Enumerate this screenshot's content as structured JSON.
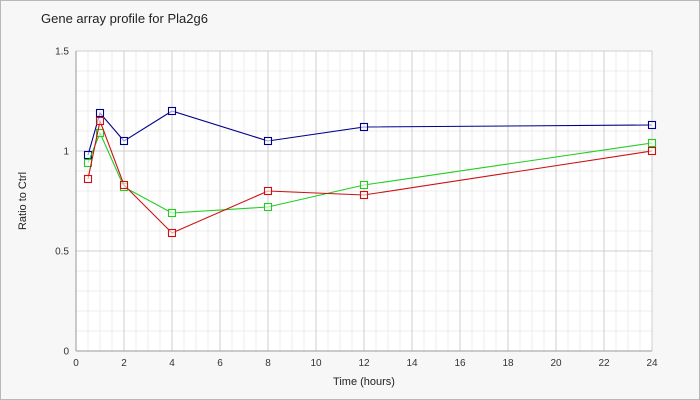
{
  "chart_data": {
    "type": "line",
    "title": "Gene array profile for Pla2g6",
    "xlabel": "Time (hours)",
    "ylabel": "Ratio to Ctrl",
    "xlim": [
      0,
      24
    ],
    "ylim": [
      0,
      1.5
    ],
    "xticks": [
      0,
      2,
      4,
      6,
      8,
      10,
      12,
      14,
      16,
      18,
      20,
      22,
      24
    ],
    "yticks": [
      0,
      0.5,
      1,
      1.5
    ],
    "ytick_labels": [
      "0",
      "0.5",
      "1",
      "1.5"
    ],
    "grid": true,
    "minor_grid": true,
    "x": [
      0.5,
      1,
      2,
      4,
      8,
      12,
      24
    ],
    "series": [
      {
        "color": "#00008b",
        "values": [
          0.98,
          1.19,
          1.05,
          1.2,
          1.05,
          1.12,
          1.13
        ]
      },
      {
        "color": "#22cc22",
        "values": [
          0.94,
          1.09,
          0.82,
          0.69,
          0.72,
          0.83,
          1.04
        ]
      },
      {
        "color": "#cc1111",
        "values": [
          0.86,
          1.15,
          0.83,
          0.59,
          0.8,
          0.78,
          1.0
        ]
      }
    ]
  }
}
